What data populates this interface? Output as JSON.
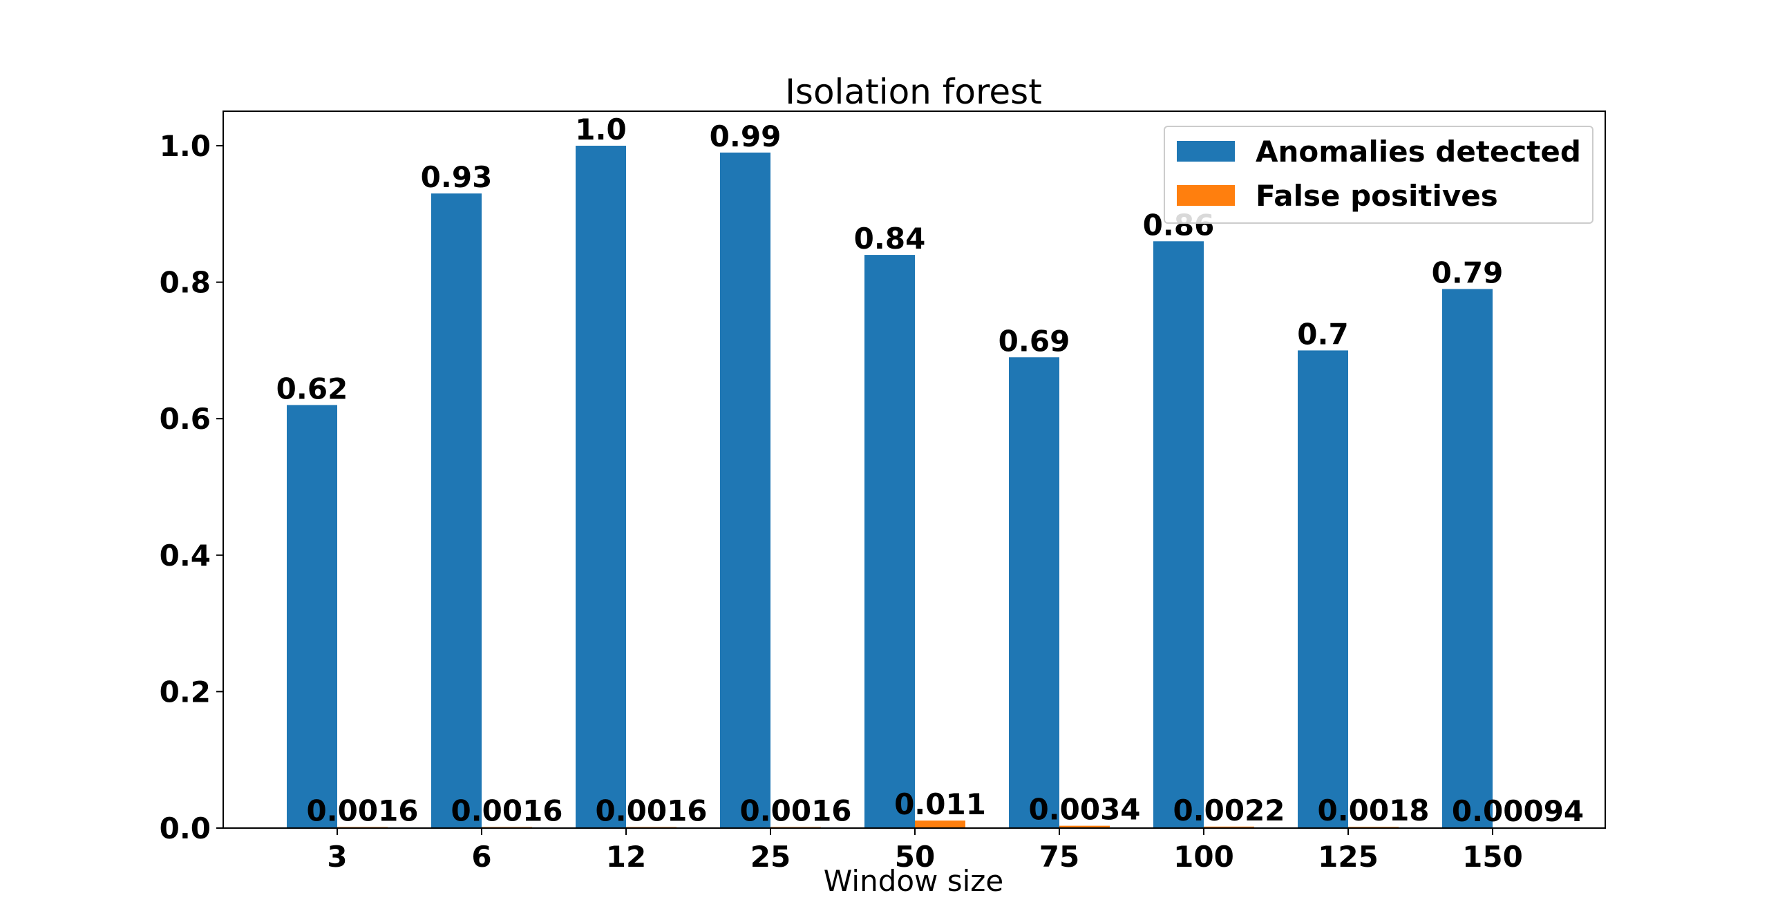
{
  "chart_data": {
    "type": "bar",
    "title": "Isolation forest",
    "xlabel": "Window size",
    "ylabel": "",
    "ylim": [
      0,
      1.05
    ],
    "yticks": [
      "0.0",
      "0.2",
      "0.4",
      "0.6",
      "0.8",
      "1.0"
    ],
    "categories": [
      "3",
      "6",
      "12",
      "25",
      "50",
      "75",
      "100",
      "125",
      "150"
    ],
    "legend_position": "top-right",
    "grid": false,
    "series": [
      {
        "name": "Anomalies detected",
        "color": "#1f77b4",
        "values": [
          0.62,
          0.93,
          1.0,
          0.99,
          0.84,
          0.69,
          0.86,
          0.7,
          0.79
        ],
        "labels": [
          "0.62",
          "0.93",
          "1.0",
          "0.99",
          "0.84",
          "0.69",
          "0.86",
          "0.7",
          "0.79"
        ]
      },
      {
        "name": "False positives",
        "color": "#ff7f0e",
        "values": [
          0.0016,
          0.0016,
          0.0016,
          0.0016,
          0.011,
          0.0034,
          0.0022,
          0.0018,
          0.00094
        ],
        "labels": [
          "0.0016",
          "0.0016",
          "0.0016",
          "0.0016",
          "0.011",
          "0.0034",
          "0.0022",
          "0.0018",
          "0.00094"
        ]
      }
    ]
  }
}
